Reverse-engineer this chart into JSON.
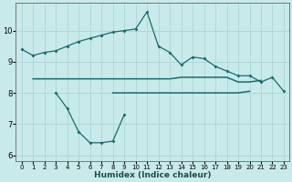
{
  "xlabel": "Humidex (Indice chaleur)",
  "background_color": "#c8eaea",
  "grid_color": "#b0d8d8",
  "line_color": "#1a6b6b",
  "x_values": [
    0,
    1,
    2,
    3,
    4,
    5,
    6,
    7,
    8,
    9,
    10,
    11,
    12,
    13,
    14,
    15,
    16,
    17,
    18,
    19,
    20,
    21,
    22,
    23
  ],
  "curve_main": [
    9.4,
    9.2,
    9.3,
    9.35,
    9.5,
    9.65,
    9.75,
    9.85,
    9.95,
    10.0,
    10.05,
    10.6,
    9.5,
    9.3,
    8.9,
    9.15,
    9.1,
    8.85,
    8.7,
    8.55,
    8.55,
    8.35,
    8.5,
    8.05
  ],
  "curve_low": [
    null,
    null,
    null,
    8.0,
    7.5,
    6.75,
    6.4,
    6.4,
    6.45,
    7.3,
    null,
    null,
    null,
    null,
    null,
    null,
    null,
    null,
    null,
    null,
    null,
    null,
    null,
    null
  ],
  "flat_upper": [
    null,
    8.45,
    8.45,
    8.45,
    8.45,
    8.45,
    8.45,
    8.45,
    8.45,
    8.45,
    8.45,
    8.45,
    8.45,
    8.45,
    8.5,
    8.5,
    8.5,
    8.5,
    8.5,
    8.35,
    8.35,
    8.4,
    null,
    null
  ],
  "flat_lower": [
    null,
    null,
    null,
    null,
    null,
    null,
    null,
    null,
    8.0,
    8.0,
    8.0,
    8.0,
    8.0,
    8.0,
    8.0,
    8.0,
    8.0,
    8.0,
    8.0,
    8.0,
    8.05,
    null,
    null,
    null
  ],
  "ylim": [
    5.8,
    10.9
  ],
  "xlim": [
    -0.5,
    23.5
  ],
  "yticks": [
    6,
    7,
    8,
    9,
    10
  ],
  "xticks": [
    0,
    1,
    2,
    3,
    4,
    5,
    6,
    7,
    8,
    9,
    10,
    11,
    12,
    13,
    14,
    15,
    16,
    17,
    18,
    19,
    20,
    21,
    22,
    23
  ]
}
